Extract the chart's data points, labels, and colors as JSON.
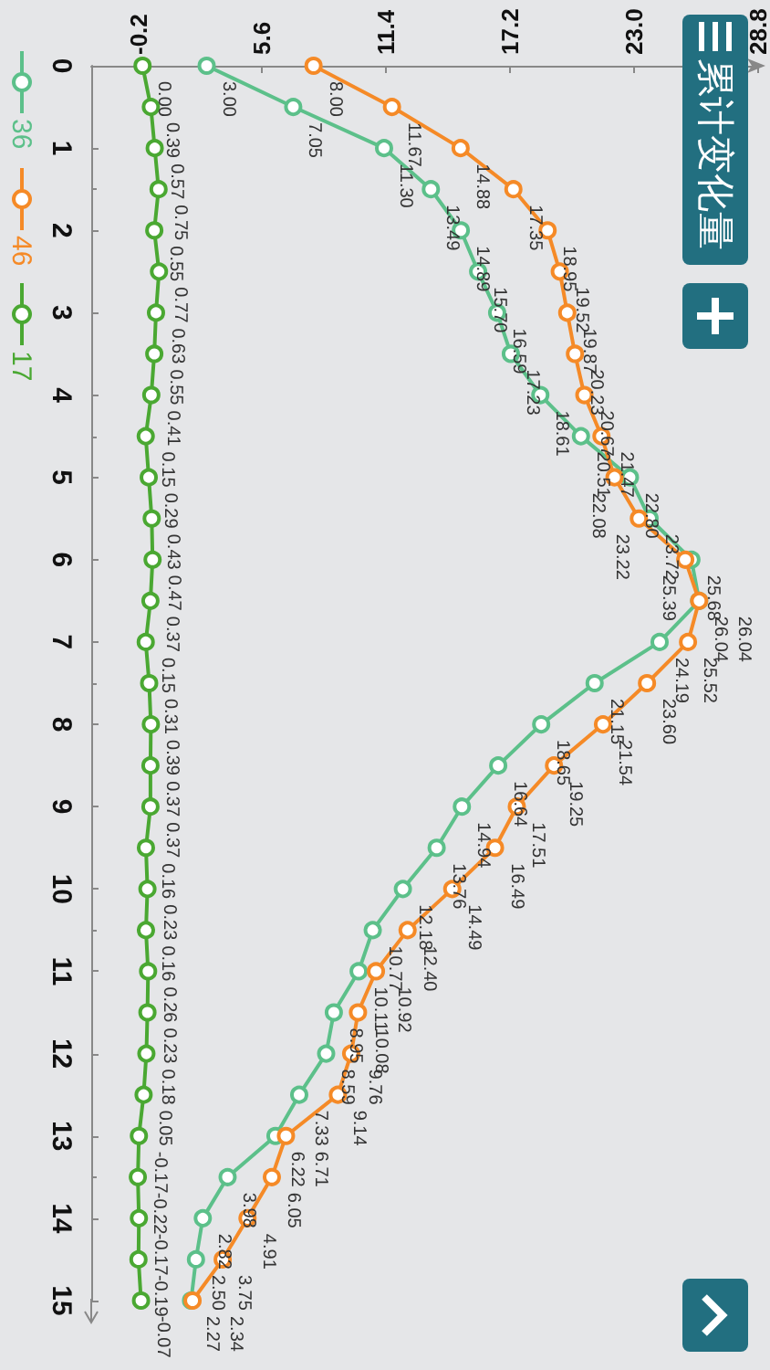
{
  "chart_data": {
    "type": "line",
    "title": "累计变化量",
    "orientation": "horizontal",
    "x": [
      0,
      0.5,
      1,
      1.5,
      2,
      2.5,
      3,
      3.5,
      4,
      4.5,
      5,
      5.5,
      6,
      6.5,
      7,
      7.5,
      8,
      8.5,
      9,
      9.5,
      10,
      10.5,
      11,
      11.5,
      12,
      12.5,
      13,
      13.5,
      14,
      14.5,
      15
    ],
    "series": [
      {
        "name": "36",
        "color": "#5cc08a",
        "values": [
          3.0,
          7.05,
          11.3,
          13.49,
          14.89,
          15.7,
          16.59,
          17.23,
          18.61,
          20.51,
          22.8,
          23.72,
          25.68,
          26.04,
          24.19,
          21.15,
          18.65,
          16.64,
          14.94,
          13.76,
          12.18,
          10.77,
          10.11,
          8.95,
          8.59,
          7.33,
          6.22,
          3.98,
          2.82,
          2.5,
          2.27
        ],
        "value_labels": [
          "3.00",
          "7.05",
          "11.30",
          "13.49",
          "14.89",
          "15.70",
          "16.59",
          "17.23",
          "18.61",
          "20.51",
          "22.80",
          "23.72",
          "25.68",
          "26.04",
          "24.19",
          "21.15",
          "18.65",
          "16.64",
          "14.94",
          "13.76",
          "12.18",
          "10.77",
          "10.11",
          "8.95",
          "8.59",
          "7.33",
          "6.22",
          "3.98",
          "2.82",
          "2.50",
          "2.27"
        ]
      },
      {
        "name": "46",
        "color": "#f58a27",
        "values": [
          8.0,
          11.67,
          14.88,
          17.35,
          18.95,
          19.52,
          19.87,
          20.23,
          20.67,
          21.47,
          22.08,
          23.22,
          25.39,
          26.04,
          25.52,
          23.6,
          21.54,
          19.25,
          17.51,
          16.49,
          14.49,
          12.4,
          10.92,
          10.08,
          9.76,
          9.14,
          6.71,
          6.05,
          4.91,
          3.75,
          2.34
        ],
        "value_labels": [
          "8.00",
          "11.67",
          "14.88",
          "17.35",
          "18.95",
          "19.52",
          "19.87",
          "20.23",
          "20.67",
          "21.47",
          "22.08",
          "23.22",
          "25.39",
          "26.04",
          "25.52",
          "23.60",
          "21.54",
          "19.25",
          "17.51",
          "16.49",
          "14.49",
          "12.40",
          "10.92",
          "10.08",
          "9.76",
          "9.14",
          "6.71",
          "6.05",
          "4.91",
          "3.75",
          "2.34"
        ]
      },
      {
        "name": "17",
        "color": "#4aa832",
        "values": [
          0.0,
          0.39,
          0.57,
          0.75,
          0.55,
          0.77,
          0.63,
          0.55,
          0.41,
          0.15,
          0.29,
          0.43,
          0.47,
          0.37,
          0.15,
          0.31,
          0.39,
          0.37,
          0.37,
          0.16,
          0.23,
          0.16,
          0.26,
          0.23,
          0.18,
          0.05,
          -0.17,
          -0.22,
          -0.17,
          -0.19,
          -0.07
        ],
        "value_labels": [
          "0.00",
          "0.39",
          "0.57",
          "0.75",
          "0.55",
          "0.77",
          "0.63",
          "0.55",
          "0.41",
          "0.15",
          "0.29",
          "0.43",
          "0.47",
          "0.37",
          "0.15",
          "0.31",
          "0.39",
          "0.37",
          "0.37",
          "0.16",
          "0.23",
          "0.16",
          "0.26",
          "0.23",
          "0.18",
          "0.05",
          "-0.17",
          "-0.22",
          "-0.17",
          "-0.19",
          "-0.07"
        ]
      }
    ],
    "xlim": [
      -2.4,
      28.8
    ],
    "xticks": [
      -0.2,
      5.6,
      11.4,
      17.2,
      {
        "value": 23,
        "label": "23.0"
      },
      28.8
    ],
    "ylim": [
      15,
      0
    ],
    "yticks": [
      0,
      1,
      2,
      3,
      4,
      5,
      6,
      7,
      8,
      9,
      10,
      11,
      12,
      13,
      14,
      15
    ],
    "grid": false,
    "legend": "top left",
    "marker": "circle",
    "line_style": "solid"
  }
}
